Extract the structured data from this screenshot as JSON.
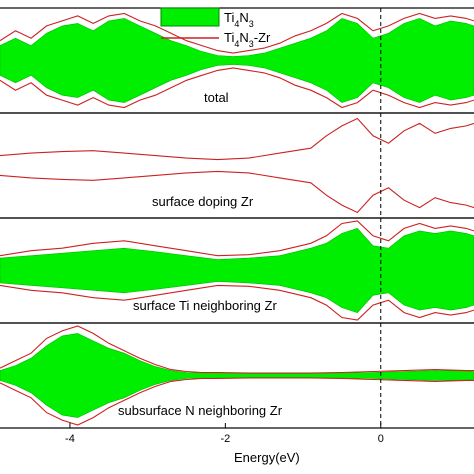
{
  "chart_data": {
    "type": "area",
    "xlabel": "Energy(eV)",
    "xlim": [
      -4.9,
      1.2
    ],
    "xticks": [
      {
        "value": -4,
        "label": "-4"
      },
      {
        "value": -2,
        "label": "-2"
      },
      {
        "value": 0,
        "label": "0"
      }
    ],
    "fermi_level": 0,
    "legend": {
      "placement": "top-center",
      "entries": [
        {
          "name_main": "Ti",
          "sub1": "4",
          "name_mid": "N",
          "sub2": "3",
          "suffix": "",
          "style": "filled area",
          "color": "#00ee00"
        },
        {
          "name_main": "Ti",
          "sub1": "4",
          "name_mid": "N",
          "sub2": "3",
          "suffix": "-Zr",
          "style": "line",
          "color": "#cc2222"
        }
      ]
    },
    "panels": [
      {
        "label": "total",
        "series": [
          {
            "kind": "fill",
            "points": [
              [
                -4.9,
                0.3
              ],
              [
                -4.7,
                0.45
              ],
              [
                -4.5,
                0.3
              ],
              [
                -4.3,
                0.55
              ],
              [
                -4.1,
                0.7
              ],
              [
                -3.9,
                0.75
              ],
              [
                -3.7,
                0.6
              ],
              [
                -3.5,
                0.8
              ],
              [
                -3.3,
                0.85
              ],
              [
                -3.1,
                0.7
              ],
              [
                -2.9,
                0.55
              ],
              [
                -2.7,
                0.4
              ],
              [
                -2.5,
                0.3
              ],
              [
                -2.3,
                0.18
              ],
              [
                -2.1,
                0.1
              ],
              [
                -1.9,
                0.08
              ],
              [
                -1.7,
                0.1
              ],
              [
                -1.5,
                0.15
              ],
              [
                -1.3,
                0.25
              ],
              [
                -1.1,
                0.35
              ],
              [
                -0.9,
                0.45
              ],
              [
                -0.7,
                0.6
              ],
              [
                -0.5,
                0.85
              ],
              [
                -0.3,
                0.75
              ],
              [
                -0.1,
                0.45
              ],
              [
                0.1,
                0.55
              ],
              [
                0.3,
                0.75
              ],
              [
                0.5,
                0.85
              ],
              [
                0.7,
                0.7
              ],
              [
                0.9,
                0.8
              ],
              [
                1.1,
                0.75
              ],
              [
                1.2,
                0.7
              ]
            ]
          },
          {
            "kind": "line",
            "points": [
              [
                -4.9,
                0.4
              ],
              [
                -4.7,
                0.6
              ],
              [
                -4.5,
                0.45
              ],
              [
                -4.3,
                0.7
              ],
              [
                -4.1,
                0.8
              ],
              [
                -3.9,
                0.9
              ],
              [
                -3.7,
                0.75
              ],
              [
                -3.5,
                0.9
              ],
              [
                -3.3,
                0.95
              ],
              [
                -3.1,
                0.8
              ],
              [
                -2.9,
                0.7
              ],
              [
                -2.7,
                0.55
              ],
              [
                -2.5,
                0.4
              ],
              [
                -2.3,
                0.3
              ],
              [
                -2.1,
                0.2
              ],
              [
                -1.9,
                0.15
              ],
              [
                -1.7,
                0.2
              ],
              [
                -1.5,
                0.25
              ],
              [
                -1.3,
                0.35
              ],
              [
                -1.1,
                0.5
              ],
              [
                -0.9,
                0.6
              ],
              [
                -0.7,
                0.75
              ],
              [
                -0.5,
                0.95
              ],
              [
                -0.3,
                0.85
              ],
              [
                -0.1,
                0.6
              ],
              [
                0.1,
                0.7
              ],
              [
                0.3,
                0.85
              ],
              [
                0.5,
                0.95
              ],
              [
                0.7,
                0.85
              ],
              [
                0.9,
                0.9
              ],
              [
                1.1,
                0.85
              ],
              [
                1.2,
                0.8
              ]
            ]
          }
        ]
      },
      {
        "label": "surface doping Zr",
        "series": [
          {
            "kind": "line",
            "points": [
              [
                -4.9,
                0.2
              ],
              [
                -4.5,
                0.25
              ],
              [
                -4.1,
                0.28
              ],
              [
                -3.7,
                0.3
              ],
              [
                -3.3,
                0.25
              ],
              [
                -2.9,
                0.2
              ],
              [
                -2.5,
                0.15
              ],
              [
                -2.1,
                0.12
              ],
              [
                -1.7,
                0.15
              ],
              [
                -1.3,
                0.25
              ],
              [
                -0.9,
                0.35
              ],
              [
                -0.7,
                0.6
              ],
              [
                -0.5,
                0.8
              ],
              [
                -0.3,
                0.95
              ],
              [
                -0.1,
                0.6
              ],
              [
                0.1,
                0.45
              ],
              [
                0.3,
                0.7
              ],
              [
                0.5,
                0.85
              ],
              [
                0.7,
                0.65
              ],
              [
                0.9,
                0.75
              ],
              [
                1.1,
                0.8
              ],
              [
                1.2,
                0.85
              ]
            ]
          }
        ]
      },
      {
        "label": "surface Ti neighboring Zr",
        "series": [
          {
            "kind": "fill",
            "points": [
              [
                -4.9,
                0.25
              ],
              [
                -4.5,
                0.3
              ],
              [
                -4.1,
                0.35
              ],
              [
                -3.7,
                0.4
              ],
              [
                -3.3,
                0.45
              ],
              [
                -2.9,
                0.38
              ],
              [
                -2.5,
                0.3
              ],
              [
                -2.1,
                0.22
              ],
              [
                -1.7,
                0.25
              ],
              [
                -1.3,
                0.3
              ],
              [
                -0.9,
                0.45
              ],
              [
                -0.7,
                0.55
              ],
              [
                -0.5,
                0.75
              ],
              [
                -0.3,
                0.85
              ],
              [
                -0.1,
                0.5
              ],
              [
                0.1,
                0.45
              ],
              [
                0.3,
                0.7
              ],
              [
                0.5,
                0.8
              ],
              [
                0.7,
                0.75
              ],
              [
                0.9,
                0.8
              ],
              [
                1.1,
                0.75
              ],
              [
                1.2,
                0.7
              ]
            ]
          },
          {
            "kind": "line",
            "points": [
              [
                -4.9,
                0.3
              ],
              [
                -4.5,
                0.4
              ],
              [
                -4.1,
                0.45
              ],
              [
                -3.7,
                0.55
              ],
              [
                -3.3,
                0.6
              ],
              [
                -2.9,
                0.5
              ],
              [
                -2.5,
                0.4
              ],
              [
                -2.1,
                0.3
              ],
              [
                -1.7,
                0.32
              ],
              [
                -1.3,
                0.4
              ],
              [
                -0.9,
                0.55
              ],
              [
                -0.7,
                0.7
              ],
              [
                -0.5,
                0.95
              ],
              [
                -0.3,
                1.0
              ],
              [
                -0.1,
                0.7
              ],
              [
                0.1,
                0.6
              ],
              [
                0.3,
                0.85
              ],
              [
                0.5,
                0.95
              ],
              [
                0.7,
                0.85
              ],
              [
                0.9,
                0.9
              ],
              [
                1.1,
                0.85
              ],
              [
                1.2,
                0.8
              ]
            ]
          }
        ]
      },
      {
        "label": "subsurface N neighboring Zr",
        "series": [
          {
            "kind": "fill",
            "points": [
              [
                -4.9,
                0.1
              ],
              [
                -4.7,
                0.2
              ],
              [
                -4.5,
                0.35
              ],
              [
                -4.3,
                0.6
              ],
              [
                -4.1,
                0.8
              ],
              [
                -3.9,
                0.85
              ],
              [
                -3.7,
                0.7
              ],
              [
                -3.5,
                0.55
              ],
              [
                -3.3,
                0.45
              ],
              [
                -3.1,
                0.3
              ],
              [
                -2.9,
                0.18
              ],
              [
                -2.7,
                0.1
              ],
              [
                -2.5,
                0.06
              ],
              [
                -2.3,
                0.05
              ],
              [
                -2.1,
                0.05
              ],
              [
                -1.7,
                0.04
              ],
              [
                -1.3,
                0.04
              ],
              [
                -0.9,
                0.04
              ],
              [
                -0.5,
                0.05
              ],
              [
                -0.1,
                0.06
              ],
              [
                0.3,
                0.08
              ],
              [
                0.7,
                0.1
              ],
              [
                1.1,
                0.09
              ],
              [
                1.2,
                0.08
              ]
            ]
          },
          {
            "kind": "line",
            "points": [
              [
                -4.9,
                0.15
              ],
              [
                -4.7,
                0.3
              ],
              [
                -4.5,
                0.45
              ],
              [
                -4.3,
                0.75
              ],
              [
                -4.1,
                0.9
              ],
              [
                -3.9,
                1.0
              ],
              [
                -3.7,
                0.85
              ],
              [
                -3.5,
                0.65
              ],
              [
                -3.3,
                0.5
              ],
              [
                -3.1,
                0.35
              ],
              [
                -2.9,
                0.22
              ],
              [
                -2.7,
                0.12
              ],
              [
                -2.5,
                0.08
              ],
              [
                -2.3,
                0.06
              ],
              [
                -2.1,
                0.06
              ],
              [
                -1.7,
                0.05
              ],
              [
                -1.3,
                0.05
              ],
              [
                -0.9,
                0.05
              ],
              [
                -0.5,
                0.06
              ],
              [
                -0.1,
                0.08
              ],
              [
                0.3,
                0.1
              ],
              [
                0.7,
                0.12
              ],
              [
                1.1,
                0.1
              ],
              [
                1.2,
                0.1
              ]
            ]
          }
        ]
      }
    ]
  }
}
